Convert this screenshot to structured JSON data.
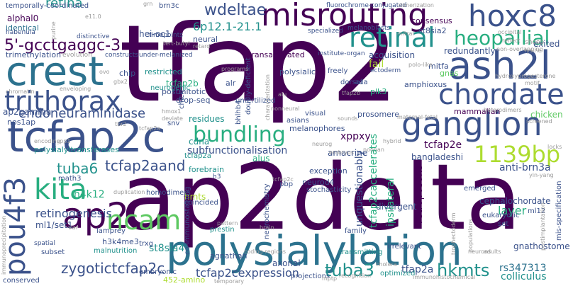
{
  "palette": {
    "dark_purple": "#440154",
    "indigo": "#3b528b",
    "teal_blue": "#2c728e",
    "teal": "#21918c",
    "green": "#28ae80",
    "light_green": "#5ec962",
    "lime": "#addc30",
    "grey": "#9a9a9a"
  },
  "words": [
    {
      "text": "tfap2",
      "c": "dark_purple"
    },
    {
      "text": "ap2delta",
      "c": "dark_purple"
    },
    {
      "text": "polysialylation",
      "c": "teal_blue"
    },
    {
      "text": "retina",
      "c": "teal"
    },
    {
      "text": "crest",
      "c": "teal_blue"
    },
    {
      "text": "tcfap2c",
      "c": "indigo"
    },
    {
      "text": "misrouting",
      "c": "dark_purple"
    },
    {
      "text": "ash2l",
      "c": "indigo"
    },
    {
      "text": "hoxc8",
      "c": "indigo"
    },
    {
      "text": "retinal",
      "c": "teal"
    },
    {
      "text": "ganglion",
      "c": "indigo"
    },
    {
      "text": "chordate",
      "c": "indigo"
    },
    {
      "text": "trithorax",
      "c": "indigo"
    },
    {
      "text": "ap2",
      "c": "dark_purple"
    },
    {
      "text": "kita",
      "c": "green"
    },
    {
      "text": "ncam",
      "c": "light_green"
    },
    {
      "text": "pou4f3",
      "c": "indigo"
    },
    {
      "text": "1139bp",
      "c": "lime"
    },
    {
      "text": "bundling",
      "c": "green"
    },
    {
      "text": "heopallial",
      "c": "green"
    },
    {
      "text": "5'-gcctgaggc-3",
      "c": "dark_purple"
    },
    {
      "text": "hkmts",
      "c": "teal"
    },
    {
      "text": "tuba3",
      "c": "teal"
    },
    {
      "text": "zygotictcfap2c",
      "c": "indigo"
    },
    {
      "text": "tcfap2aand",
      "c": "indigo"
    },
    {
      "text": "wdeltae",
      "c": "indigo"
    },
    {
      "text": "tuba6",
      "c": "teal"
    },
    {
      "text": "6p12.1-21.1",
      "c": "teal"
    },
    {
      "text": "endoneuraminidase",
      "c": "indigo"
    },
    {
      "text": "tcfap2e",
      "c": "dark_purple"
    },
    {
      "text": "retinogenesis",
      "c": "indigo"
    },
    {
      "text": "st8sia4",
      "c": "teal"
    },
    {
      "text": "tcfap2cexpression",
      "c": "indigo"
    },
    {
      "text": "subfunctionalisation",
      "c": "indigo"
    },
    {
      "text": "anti-brn3a",
      "c": "indigo"
    },
    {
      "text": "rs347313",
      "c": "teal_blue"
    },
    {
      "text": "colliculus",
      "c": "teal"
    },
    {
      "text": "tcfap2caccelerates",
      "c": "green"
    },
    {
      "text": "tfap2a",
      "c": "indigo"
    },
    {
      "text": "bangladeshi",
      "c": "indigo"
    },
    {
      "text": "unquestionably",
      "c": "indigo"
    },
    {
      "text": "retroposons",
      "c": "dark_purple"
    },
    {
      "text": "ipsilateral",
      "c": "green"
    },
    {
      "text": "divergent",
      "c": "indigo"
    },
    {
      "text": "amacrine",
      "c": "indigo"
    },
    {
      "text": "xppxy",
      "c": "dark_purple"
    },
    {
      "text": "layer",
      "c": "green"
    },
    {
      "text": "cephalochordate",
      "c": "indigo"
    },
    {
      "text": "h4k12",
      "c": "green"
    },
    {
      "text": "ap2gamma",
      "c": "indigo"
    },
    {
      "text": "nos1ap",
      "c": "indigo"
    },
    {
      "text": "alphal0",
      "c": "dark_purple"
    },
    {
      "text": "hei-oc1",
      "c": "indigo"
    },
    {
      "text": "acquisition",
      "c": "indigo"
    },
    {
      "text": "redundantly",
      "c": "indigo"
    },
    {
      "text": "exited",
      "c": "indigo"
    },
    {
      "text": "tcfap2b",
      "c": "green"
    },
    {
      "text": "alus",
      "c": "green"
    },
    {
      "text": "hmts",
      "c": "lime"
    },
    {
      "text": "cdna",
      "c": "teal"
    },
    {
      "text": "residues",
      "c": "teal"
    },
    {
      "text": "ml1/set1",
      "c": "indigo"
    },
    {
      "text": "axonal",
      "c": "indigo"
    },
    {
      "text": "agnathan",
      "c": "indigo"
    },
    {
      "text": "gnathostome",
      "c": "indigo"
    },
    {
      "text": "forebrain",
      "c": "teal"
    },
    {
      "text": "consensus",
      "c": "dark_purple"
    },
    {
      "text": "st8sia2",
      "c": "indigo"
    },
    {
      "text": "neural",
      "c": "indigo"
    },
    {
      "text": "transactivated",
      "c": "dark_purple"
    },
    {
      "text": "restricted",
      "c": "teal"
    },
    {
      "text": "polysialic",
      "c": "indigo"
    },
    {
      "text": "postmitotic",
      "c": "indigo"
    },
    {
      "text": "drop-seq",
      "c": "indigo"
    },
    {
      "text": "alr",
      "c": "indigo"
    },
    {
      "text": "neurogenic",
      "c": "teal"
    },
    {
      "text": "chip",
      "c": "indigo"
    },
    {
      "text": "trimethylation",
      "c": "indigo"
    },
    {
      "text": "identical",
      "c": "teal_blue"
    },
    {
      "text": "mammalian",
      "c": "dark_purple"
    },
    {
      "text": "chicken",
      "c": "light_green"
    },
    {
      "text": "amphioxus",
      "c": "indigo"
    },
    {
      "text": "prosomere",
      "c": "indigo"
    },
    {
      "text": "melanophores",
      "c": "indigo"
    },
    {
      "text": "unfertilized",
      "c": "indigo"
    },
    {
      "text": "visual",
      "c": "indigo"
    },
    {
      "text": "asians",
      "c": "indigo"
    },
    {
      "text": "neurod4",
      "c": "indigo"
    },
    {
      "text": "exception",
      "c": "indigo"
    },
    {
      "text": "polysialyltransferases",
      "c": "teal"
    },
    {
      "text": "homodimers",
      "c": "indigo"
    },
    {
      "text": "tcfap2a",
      "c": "teal"
    },
    {
      "text": "coincided",
      "c": "indigo"
    },
    {
      "text": "lamprey",
      "c": "indigo"
    },
    {
      "text": "malnutrition",
      "c": "teal"
    },
    {
      "text": "prestin",
      "c": "teal"
    },
    {
      "text": "h3k4me3",
      "c": "indigo"
    },
    {
      "text": "math3",
      "c": "indigo"
    },
    {
      "text": "subset",
      "c": "indigo"
    },
    {
      "text": "conserved",
      "c": "indigo"
    },
    {
      "text": "fail",
      "c": "lime"
    },
    {
      "text": "mitfa",
      "c": "indigo"
    },
    {
      "text": "plk3",
      "c": "green"
    },
    {
      "text": "gnas",
      "c": "light_green"
    },
    {
      "text": "emerged",
      "c": "indigo"
    },
    {
      "text": "ml12",
      "c": "indigo"
    },
    {
      "text": "set",
      "c": "indigo"
    },
    {
      "text": "eukaryotic",
      "c": "indigo"
    },
    {
      "text": "trxg",
      "c": "indigo"
    },
    {
      "text": "family",
      "c": "indigo"
    },
    {
      "text": "irrelevant",
      "c": "indigo"
    },
    {
      "text": "transmitting",
      "c": "teal"
    },
    {
      "text": "optimized",
      "c": "teal"
    },
    {
      "text": "projections",
      "c": "indigo"
    },
    {
      "text": "embryonic",
      "c": "indigo"
    },
    {
      "text": "452-amino",
      "c": "lime"
    },
    {
      "text": "mis-specification",
      "c": "indigo"
    },
    {
      "text": "stochasticity",
      "c": "indigo"
    },
    {
      "text": "bhlhb4",
      "c": "indigo"
    },
    {
      "text": "neurochemistry",
      "c": "indigo"
    },
    {
      "text": "co-immunostaining",
      "c": "indigo"
    },
    {
      "text": "doubly-deficient",
      "c": "indigo"
    },
    {
      "text": "temporally-coordinated",
      "c": "indigo"
    },
    {
      "text": "fluorochrome-conjugated",
      "c": "indigo"
    },
    {
      "text": "brn3c",
      "c": "indigo"
    },
    {
      "text": "timepoints",
      "c": "indigo"
    },
    {
      "text": "melanoblasts",
      "c": "indigo"
    },
    {
      "text": "institute-organ",
      "c": "indigo"
    },
    {
      "text": "under-melanized",
      "c": "indigo"
    },
    {
      "text": "specialized",
      "c": "indigo"
    },
    {
      "text": "constructs",
      "c": "indigo"
    },
    {
      "text": "distinctive",
      "c": "indigo"
    },
    {
      "text": "evolution",
      "c": "grey"
    },
    {
      "text": "habenula",
      "c": "indigo"
    },
    {
      "text": "spatial",
      "c": "indigo"
    },
    {
      "text": "chick",
      "c": "indigo"
    },
    {
      "text": "snv",
      "c": "indigo"
    },
    {
      "text": "dorsal",
      "c": "indigo"
    },
    {
      "text": "freely",
      "c": "indigo"
    },
    {
      "text": "ada",
      "c": "indigo"
    },
    {
      "text": "ectoderm",
      "c": "indigo"
    },
    {
      "text": "sheep",
      "c": "grey"
    },
    {
      "text": "lysine",
      "c": "grey"
    },
    {
      "text": "reflect",
      "c": "grey"
    },
    {
      "text": "occipital",
      "c": "grey"
    },
    {
      "text": "mitral",
      "c": "grey"
    },
    {
      "text": "neurog",
      "c": "grey"
    },
    {
      "text": "tcfap2a",
      "c": "grey"
    },
    {
      "text": "tbr2",
      "c": "grey"
    },
    {
      "text": "var",
      "c": "grey"
    },
    {
      "text": "brain",
      "c": "grey"
    },
    {
      "text": "pattern",
      "c": "grey"
    },
    {
      "text": "gbx2",
      "c": "grey"
    },
    {
      "text": "tfap2b",
      "c": "grey"
    },
    {
      "text": "embryos",
      "c": "grey"
    },
    {
      "text": "pbp",
      "c": "indigo"
    },
    {
      "text": "h3",
      "c": "indigo"
    },
    {
      "text": "duplication",
      "c": "grey"
    },
    {
      "text": "coding-regions",
      "c": "grey"
    },
    {
      "text": "cholera",
      "c": "grey"
    },
    {
      "text": "adults",
      "c": "grey"
    },
    {
      "text": "neurons",
      "c": "grey"
    },
    {
      "text": "heterodimers",
      "c": "grey"
    },
    {
      "text": "screened",
      "c": "grey"
    },
    {
      "text": "sounds",
      "c": "grey"
    },
    {
      "text": "maternal-fetal",
      "c": "grey"
    },
    {
      "text": "deviate",
      "c": "grey"
    },
    {
      "text": "hmox1",
      "c": "grey"
    },
    {
      "text": "immunohistochemical",
      "c": "grey"
    },
    {
      "text": "immunoprecipitation",
      "c": "grey"
    },
    {
      "text": "trophectoderm",
      "c": "grey"
    },
    {
      "text": "populations",
      "c": "grey"
    },
    {
      "text": "postimplantation",
      "c": "grey"
    },
    {
      "text": "yin-yang",
      "c": "grey"
    },
    {
      "text": "motif",
      "c": "grey"
    },
    {
      "text": "hydroxyprogesterone",
      "c": "grey"
    },
    {
      "text": "non-overlapping",
      "c": "grey"
    },
    {
      "text": "polo-like",
      "c": "grey"
    },
    {
      "text": "dimerization",
      "c": "grey"
    },
    {
      "text": "purine",
      "c": "grey"
    },
    {
      "text": "chromatin",
      "c": "grey"
    },
    {
      "text": "enveloping",
      "c": "grey"
    },
    {
      "text": "tert-butyl",
      "c": "grey"
    },
    {
      "text": "e11.0",
      "c": "grey"
    },
    {
      "text": "grn",
      "c": "grey"
    },
    {
      "text": "characterization",
      "c": "grey"
    },
    {
      "text": "programs",
      "c": "grey"
    },
    {
      "text": "encoding",
      "c": "grey"
    },
    {
      "text": "alu",
      "c": "grey"
    },
    {
      "text": "ovo",
      "c": "grey"
    },
    {
      "text": "tcfap2c",
      "c": "grey"
    },
    {
      "text": "spp1",
      "c": "grey"
    },
    {
      "text": "recognition",
      "c": "grey"
    },
    {
      "text": "temporary",
      "c": "grey"
    },
    {
      "text": "mptp",
      "c": "grey"
    },
    {
      "text": "retard",
      "c": "grey"
    },
    {
      "text": "noonan",
      "c": "grey"
    },
    {
      "text": "nonneural",
      "c": "grey"
    },
    {
      "text": "hybrid",
      "c": "grey"
    },
    {
      "text": "locks",
      "c": "grey"
    }
  ]
}
